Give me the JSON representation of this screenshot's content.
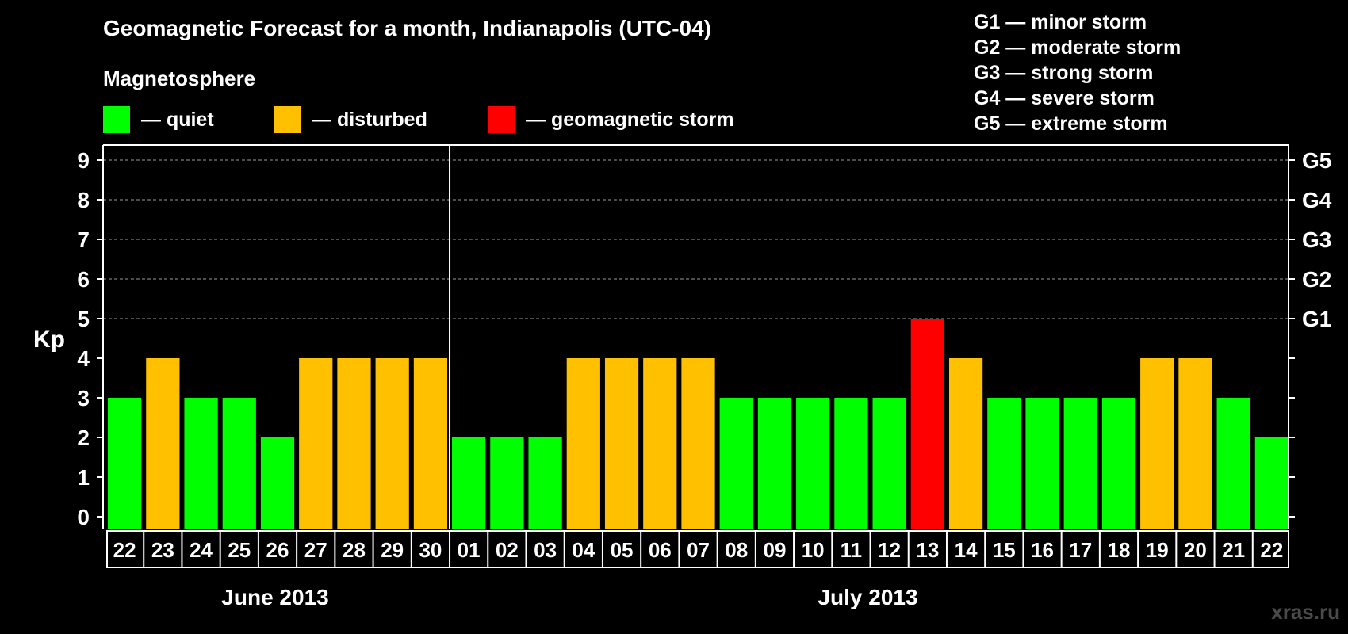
{
  "title": "Geomagnetic Forecast for a month, Indianapolis (UTC-04)",
  "legend": {
    "heading": "Magnetosphere",
    "items": [
      {
        "label": "— quiet",
        "color": "#00ff00"
      },
      {
        "label": "— disturbed",
        "color": "#ffc000"
      },
      {
        "label": "— geomagnetic storm",
        "color": "#ff0000"
      }
    ]
  },
  "g_scale_key": [
    "G1 — minor storm",
    "G2 — moderate storm",
    "G3 — strong storm",
    "G4 — severe storm",
    "G5 — extreme storm"
  ],
  "watermark": "xras.ru",
  "chart_data": {
    "type": "bar",
    "ylabel": "Kp",
    "ylim": [
      0,
      9
    ],
    "y_ticks": [
      "0",
      "1",
      "2",
      "3",
      "4",
      "5",
      "6",
      "7",
      "8",
      "9"
    ],
    "right_axis_labels": [
      {
        "kp": 5,
        "label": "G1"
      },
      {
        "kp": 6,
        "label": "G2"
      },
      {
        "kp": 7,
        "label": "G3"
      },
      {
        "kp": 8,
        "label": "G4"
      },
      {
        "kp": 9,
        "label": "G5"
      }
    ],
    "grid": "dashed horizontal lines at Kp 5-9",
    "categories": [
      "22",
      "23",
      "24",
      "25",
      "26",
      "27",
      "28",
      "29",
      "30",
      "01",
      "02",
      "03",
      "04",
      "05",
      "06",
      "07",
      "08",
      "09",
      "10",
      "11",
      "12",
      "13",
      "14",
      "15",
      "16",
      "17",
      "18",
      "19",
      "20",
      "21",
      "22"
    ],
    "values": [
      3,
      4,
      3,
      3,
      2,
      4,
      4,
      4,
      4,
      2,
      2,
      2,
      4,
      4,
      4,
      4,
      3,
      3,
      3,
      3,
      3,
      5,
      4,
      3,
      3,
      3,
      3,
      4,
      4,
      3,
      2
    ],
    "colors": {
      "quiet": "#00ff00",
      "disturbed": "#ffc000",
      "storm": "#ff0000"
    },
    "months": [
      {
        "label": "June 2013",
        "days": 9
      },
      {
        "label": "July 2013",
        "days": 22
      }
    ]
  }
}
